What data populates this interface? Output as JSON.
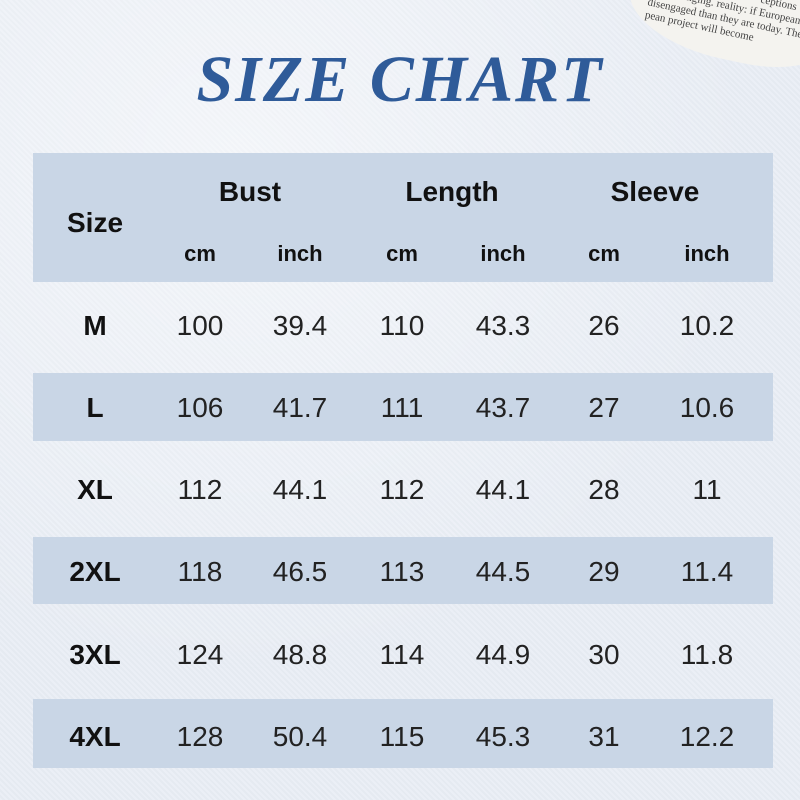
{
  "title": "SIZE CHART",
  "newspaper_lines": [
    "ceptions",
    "the way Europe is changing. reality: if European",
    "disengaged than they are today. The",
    "pean project will become"
  ],
  "colors": {
    "title": "#2f5b99",
    "band": "#c9d6e6",
    "background": "#e9eef5"
  },
  "header": {
    "size": "Size",
    "groups": [
      "Bust",
      "Length",
      "Sleeve"
    ],
    "units": [
      "cm",
      "inch",
      "cm",
      "inch",
      "cm",
      "inch"
    ]
  },
  "rows": [
    {
      "size": "M",
      "values": [
        "100",
        "39.4",
        "110",
        "43.3",
        "26",
        "10.2"
      ]
    },
    {
      "size": "L",
      "values": [
        "106",
        "41.7",
        "111",
        "43.7",
        "27",
        "10.6"
      ]
    },
    {
      "size": "XL",
      "values": [
        "112",
        "44.1",
        "112",
        "44.1",
        "28",
        "11"
      ]
    },
    {
      "size": "2XL",
      "values": [
        "118",
        "46.5",
        "113",
        "44.5",
        "29",
        "11.4"
      ]
    },
    {
      "size": "3XL",
      "values": [
        "124",
        "48.8",
        "114",
        "44.9",
        "30",
        "11.8"
      ]
    },
    {
      "size": "4XL",
      "values": [
        "128",
        "50.4",
        "115",
        "45.3",
        "31",
        "12.2"
      ]
    }
  ]
}
